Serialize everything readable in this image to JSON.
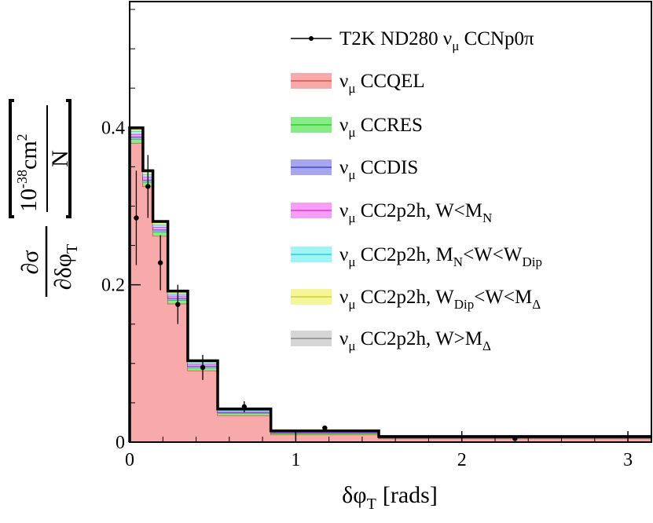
{
  "chart_data": {
    "type": "step-histogram",
    "xlabel": "δφ_T [rads]",
    "ylabel": "∂σ/∂δφ_T [10^-38 cm²/N]",
    "ylabel_parts": {
      "numerator": "∂σ",
      "denominator": "∂δφ",
      "denominator_sub": "T",
      "unit_mantissa": "10",
      "unit_exp": "-38",
      "unit_base": "cm",
      "unit_base_exp": "2",
      "unit_denominator": "N"
    },
    "xlabel_parts": {
      "main": "δφ",
      "sub": "T",
      "unit": "[rads]"
    },
    "xlim": [
      0,
      3.1416
    ],
    "ylim": [
      0,
      0.56
    ],
    "xticks": [
      0,
      1,
      2,
      3
    ],
    "xtick_labels": [
      "0",
      "1",
      "2",
      "3"
    ],
    "yticks": [
      0,
      0.2,
      0.4
    ],
    "ytick_labels": [
      "0",
      "0.2",
      "0.4"
    ],
    "bin_edges": [
      0,
      0.08,
      0.14,
      0.23,
      0.35,
      0.53,
      0.85,
      1.5,
      3.1416
    ],
    "stack": [
      {
        "name": "ν_μ CCQEL",
        "color": "#f8a9a9",
        "line": "#e23b3b",
        "values": [
          0.38,
          0.325,
          0.262,
          0.176,
          0.091,
          0.034,
          0.0095,
          0.0045
        ]
      },
      {
        "name": "ν_μ CCRES",
        "color": "#86ec86",
        "line": "#1ec81e",
        "values": [
          0.005,
          0.0055,
          0.005,
          0.0045,
          0.0035,
          0.0025,
          0.0015,
          0.0008
        ]
      },
      {
        "name": "ν_μ CCDIS",
        "color": "#a6a6ee",
        "line": "#3434c8",
        "values": [
          0.003,
          0.003,
          0.003,
          0.0025,
          0.002,
          0.0012,
          0.0007,
          0.0004
        ]
      },
      {
        "name": "ν_μ CC2p2h, W<M_N",
        "color": "#f5a0f5",
        "line": "#e020e0",
        "values": [
          0.0035,
          0.0035,
          0.0035,
          0.003,
          0.0025,
          0.0015,
          0.0008,
          0.0004
        ]
      },
      {
        "name": "ν_μ CC2p2h, M_N<W<W_Dip",
        "color": "#9ff5f5",
        "line": "#18c8c8",
        "values": [
          0.0035,
          0.0035,
          0.003,
          0.0025,
          0.002,
          0.0012,
          0.0007,
          0.0004
        ]
      },
      {
        "name": "ν_μ CC2p2h, W_Dip<W<M_Δ",
        "color": "#f5f59a",
        "line": "#c8c818",
        "values": [
          0.0025,
          0.0025,
          0.0025,
          0.002,
          0.0015,
          0.001,
          0.0006,
          0.0003
        ]
      },
      {
        "name": "ν_μ CC2p2h, W>M_Δ",
        "color": "#d6d6d6",
        "line": "#7a7a7a",
        "values": [
          0.002,
          0.002,
          0.0015,
          0.0015,
          0.001,
          0.0008,
          0.0005,
          0.0003
        ]
      }
    ],
    "data_series": {
      "name": "T2K ND280 ν_μ CCNp0π",
      "x": [
        0.04,
        0.11,
        0.185,
        0.29,
        0.44,
        0.69,
        1.175,
        2.32
      ],
      "y": [
        0.285,
        0.325,
        0.228,
        0.175,
        0.095,
        0.045,
        0.018,
        0.0045
      ],
      "err": [
        0.06,
        0.04,
        0.035,
        0.025,
        0.016,
        0.007,
        0.0025,
        0.001
      ]
    },
    "legend": {
      "position": "top-right",
      "entries": [
        {
          "key": "data",
          "label": "T2K ND280 ν",
          "sub": "μ",
          "rest": " CCNp0π"
        },
        {
          "key": "CCQEL",
          "label": "ν",
          "sub": "μ",
          "rest": " CCQEL"
        },
        {
          "key": "CCRES",
          "label": "ν",
          "sub": "μ",
          "rest": " CCRES"
        },
        {
          "key": "CCDIS",
          "label": "ν",
          "sub": "μ",
          "rest": " CCDIS"
        },
        {
          "key": "2p2h1",
          "label": "ν",
          "sub": "μ",
          "rest": " CC2p2h, W<M",
          "sub2": "N"
        },
        {
          "key": "2p2h2",
          "label": "ν",
          "sub": "μ",
          "rest": " CC2p2h, M",
          "sub2": "N",
          "rest2": "<W<W",
          "sub3": "Dip"
        },
        {
          "key": "2p2h3",
          "label": "ν",
          "sub": "μ",
          "rest": " CC2p2h, W",
          "sub2": "Dip",
          "rest2": "<W<M",
          "sub3": "Δ"
        },
        {
          "key": "2p2h4",
          "label": "ν",
          "sub": "μ",
          "rest": " CC2p2h, W>M",
          "sub2": "Δ"
        }
      ]
    },
    "grid": false
  }
}
